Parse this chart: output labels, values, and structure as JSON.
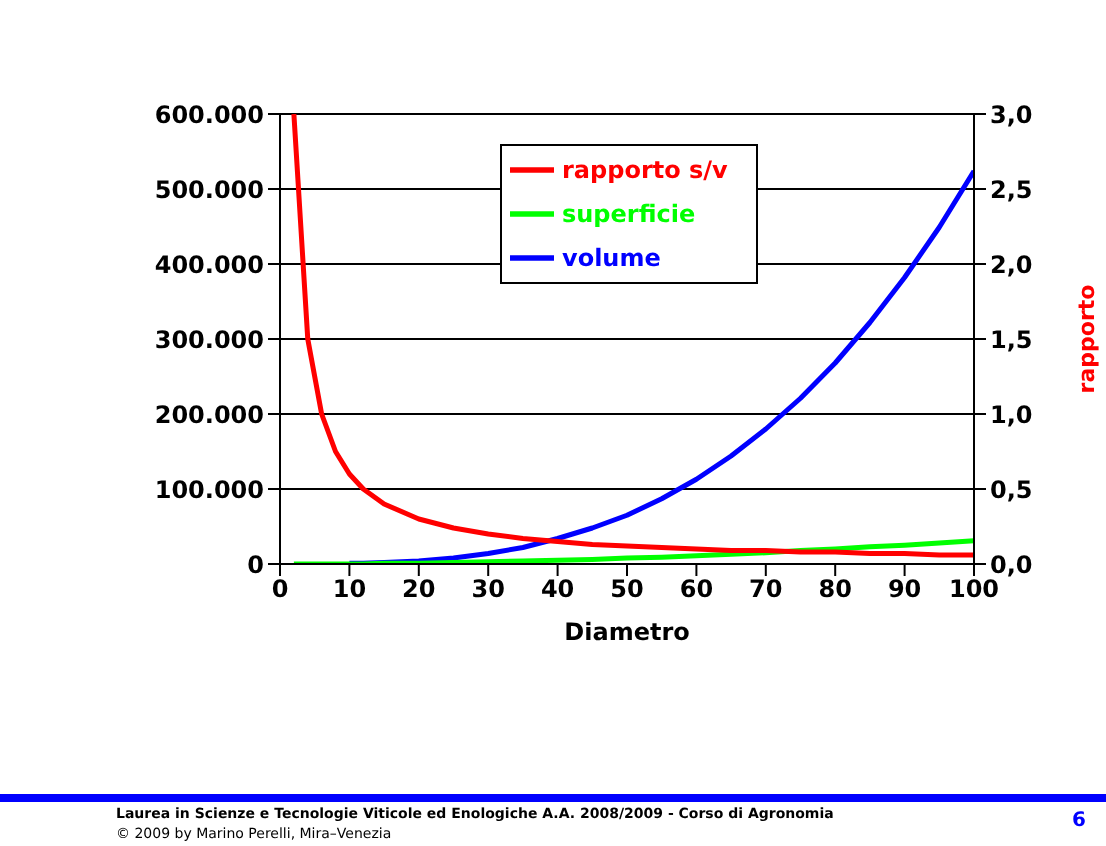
{
  "chart_data": {
    "type": "line",
    "xlabel": "Diametro",
    "y2label": "rapporto",
    "x": [
      2,
      4,
      6,
      8,
      10,
      12,
      15,
      20,
      25,
      30,
      35,
      40,
      45,
      50,
      55,
      60,
      65,
      70,
      75,
      80,
      85,
      90,
      95,
      100
    ],
    "series": [
      {
        "name": "volume",
        "color": "#0000ff",
        "values": [
          null,
          null,
          null,
          null,
          1000,
          1000,
          2000,
          4000,
          8000,
          14000,
          22000,
          34000,
          48000,
          65000,
          87000,
          113000,
          144000,
          180000,
          221000,
          268000,
          322000,
          382000,
          449000,
          524000
        ]
      },
      {
        "name": "superficie",
        "color": "#00ff00",
        "values": [
          0,
          0,
          0,
          0,
          0,
          0,
          1000,
          1000,
          2000,
          3000,
          4000,
          5000,
          6000,
          8000,
          9000,
          11000,
          13000,
          15000,
          18000,
          20000,
          23000,
          25000,
          28000,
          31000
        ]
      },
      {
        "name": "rapporto s/v",
        "color": "#ff0000",
        "axis": "y2",
        "values": [
          3.0,
          1.5,
          1.0,
          0.75,
          0.6,
          0.5,
          0.4,
          0.3,
          0.24,
          0.2,
          0.17,
          0.15,
          0.13,
          0.12,
          0.11,
          0.1,
          0.09,
          0.09,
          0.08,
          0.08,
          0.07,
          0.07,
          0.06,
          0.06
        ]
      }
    ],
    "xlim": [
      0,
      100
    ],
    "xticks": [
      0,
      10,
      20,
      30,
      40,
      50,
      60,
      70,
      80,
      90,
      100
    ],
    "ylim": [
      0,
      600000
    ],
    "yticks": [
      0,
      {
        "value": 100000,
        "label": "100.000"
      },
      {
        "value": 200000,
        "label": "200.000"
      },
      {
        "value": 300000,
        "label": "300.000"
      },
      {
        "value": 400000,
        "label": "400.000"
      },
      {
        "value": 500000,
        "label": "500.000"
      },
      {
        "value": 600000,
        "label": "600.000"
      }
    ],
    "y2lim": [
      0,
      3
    ],
    "y2ticks": [
      {
        "value": 0,
        "label": "0,0"
      },
      {
        "value": 0.5,
        "label": "0,5"
      },
      {
        "value": 1,
        "label": "1,0"
      },
      {
        "value": 1.5,
        "label": "1,5"
      },
      {
        "value": 2,
        "label": "2,0"
      },
      {
        "value": 2.5,
        "label": "2,5"
      },
      {
        "value": 3,
        "label": "3,0"
      }
    ],
    "grid": "y",
    "legend": "top",
    "marker": "none",
    "line_style": "solid",
    "annotations": [
      "Laurea in Scienze e Tecnologie Viticole ed Enologiche A.A. 2008/2009 - Corso di Agronomia",
      "© 2009 by Marino Perelli, Mira–Venezia",
      "6"
    ]
  }
}
